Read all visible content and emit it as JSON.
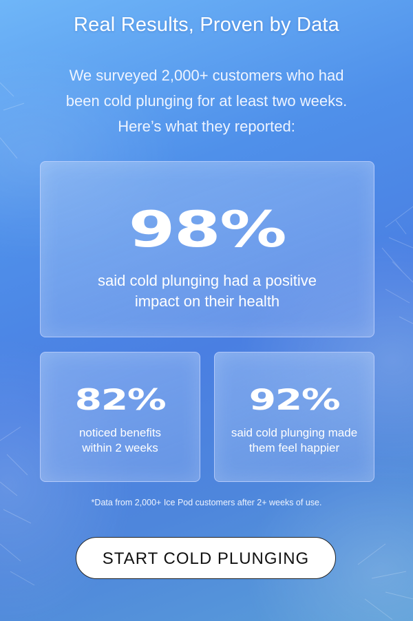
{
  "header": {
    "title": "Real Results, Proven by Data",
    "intro": "We surveyed 2,000+ customers who had been cold plunging for at least two weeks. Here’s what they reported:"
  },
  "stats": {
    "main": {
      "value": "98%",
      "description": "said cold plunging had a positive impact on their health"
    },
    "secondary": [
      {
        "value": "82%",
        "description": "noticed benefits within 2 weeks"
      },
      {
        "value": "92%",
        "description": "said cold plunging made them feel happier"
      }
    ]
  },
  "footnote": "*Data from 2,000+ Ice Pod customers after 2+ weeks of use.",
  "cta": {
    "label": "START COLD PLUNGING"
  },
  "colors": {
    "background_top": "#6fb6f8",
    "background_mid": "#4a7fe2",
    "card_border": "#c8d7ff",
    "button_bg": "#ffffff",
    "button_text": "#111111"
  }
}
